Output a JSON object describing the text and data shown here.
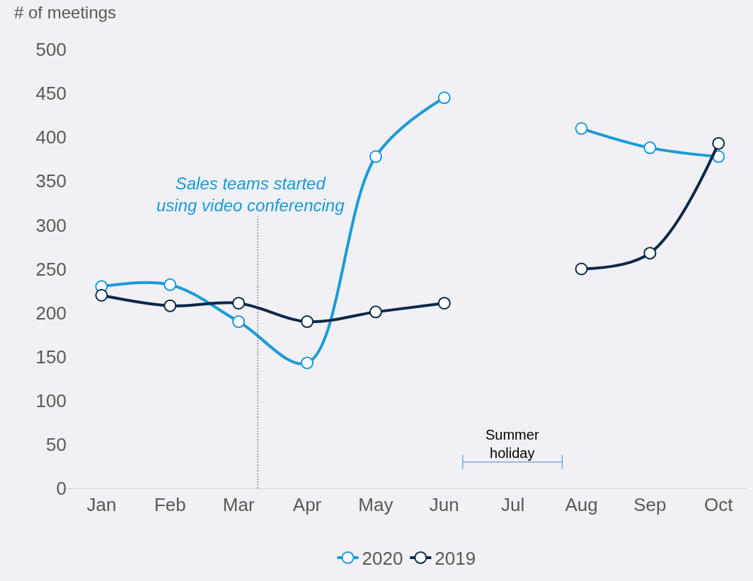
{
  "chart_data": {
    "type": "line",
    "ylabel": "# of meetings",
    "categories": [
      "Jan",
      "Feb",
      "Mar",
      "Apr",
      "May",
      "Jun",
      "Jul",
      "Aug",
      "Sep",
      "Oct"
    ],
    "ylim": [
      0,
      500
    ],
    "yticks": [
      0,
      50,
      100,
      150,
      200,
      250,
      300,
      350,
      400,
      450,
      500
    ],
    "series": [
      {
        "name": "2020",
        "color": "#1b9ad8",
        "values": [
          230,
          232,
          190,
          143,
          378,
          445,
          null,
          410,
          388,
          378
        ]
      },
      {
        "name": "2019",
        "color": "#0c2847",
        "values": [
          220,
          208,
          211,
          190,
          201,
          211,
          null,
          250,
          268,
          393
        ]
      }
    ],
    "annotations": [
      "Sales teams started\nusing video conferencing",
      "Summer\nholiday"
    ],
    "grid": false,
    "legend": "bottom",
    "marker": "circle",
    "line_style": "solid"
  }
}
